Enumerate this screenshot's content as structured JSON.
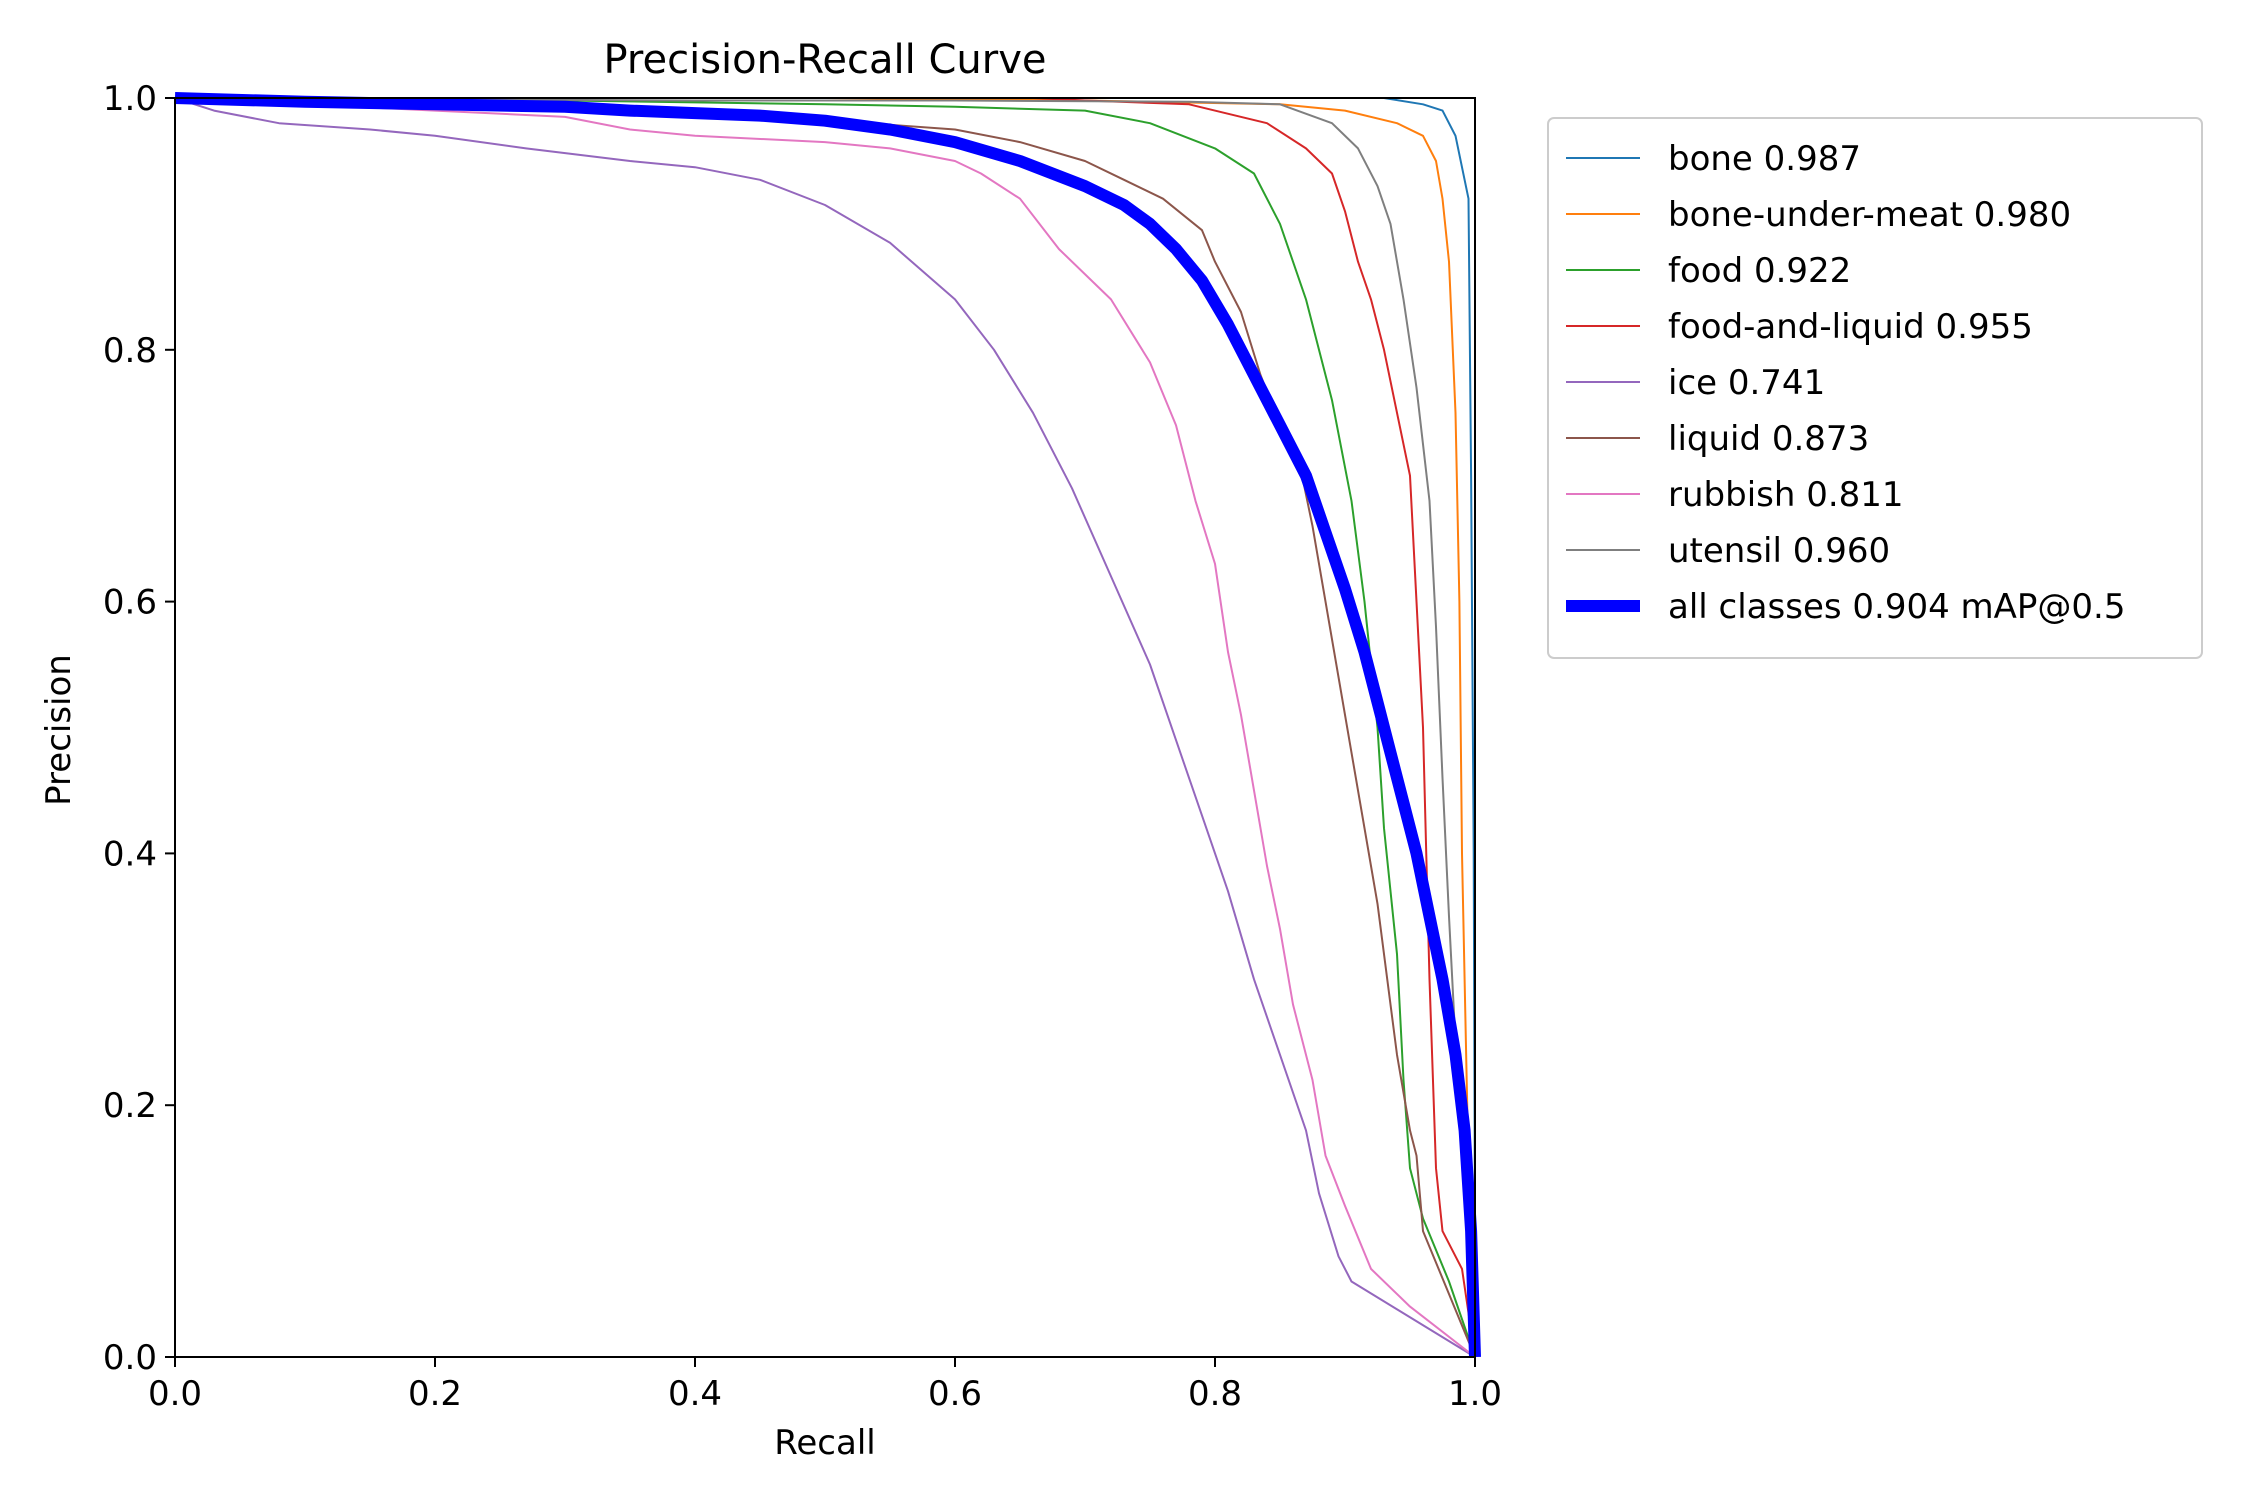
{
  "chart_data": {
    "type": "line",
    "title": "Precision-Recall Curve",
    "xlabel": "Recall",
    "ylabel": "Precision",
    "xlim": [
      0.0,
      1.0
    ],
    "ylim": [
      0.0,
      1.0
    ],
    "xticks": [
      "0.0",
      "0.2",
      "0.4",
      "0.6",
      "0.8",
      "1.0"
    ],
    "yticks": [
      "0.0",
      "0.2",
      "0.4",
      "0.6",
      "0.8",
      "1.0"
    ],
    "grid": false,
    "legend_position": "outside-right-top",
    "series": [
      {
        "name": "bone 0.987",
        "color": "#1f77b4",
        "width": 1,
        "points": [
          [
            0.0,
            1.0
          ],
          [
            0.3,
            1.0
          ],
          [
            0.6,
            1.0
          ],
          [
            0.88,
            1.0
          ],
          [
            0.93,
            1.0
          ],
          [
            0.96,
            0.995
          ],
          [
            0.975,
            0.99
          ],
          [
            0.985,
            0.97
          ],
          [
            0.995,
            0.92
          ],
          [
            0.997,
            0.7
          ],
          [
            0.999,
            0.4
          ],
          [
            1.0,
            0.1
          ],
          [
            1.0,
            0.0
          ]
        ]
      },
      {
        "name": "bone-under-meat 0.980",
        "color": "#ff7f0e",
        "width": 1,
        "points": [
          [
            0.0,
            1.0
          ],
          [
            0.5,
            1.0
          ],
          [
            0.7,
            0.998
          ],
          [
            0.85,
            0.995
          ],
          [
            0.9,
            0.99
          ],
          [
            0.94,
            0.98
          ],
          [
            0.96,
            0.97
          ],
          [
            0.97,
            0.95
          ],
          [
            0.975,
            0.92
          ],
          [
            0.98,
            0.87
          ],
          [
            0.985,
            0.75
          ],
          [
            0.988,
            0.6
          ],
          [
            0.99,
            0.4
          ],
          [
            0.993,
            0.25
          ],
          [
            0.995,
            0.15
          ],
          [
            1.0,
            0.0
          ]
        ]
      },
      {
        "name": "food 0.922",
        "color": "#2ca02c",
        "width": 1,
        "points": [
          [
            0.0,
            1.0
          ],
          [
            0.3,
            0.998
          ],
          [
            0.5,
            0.995
          ],
          [
            0.6,
            0.993
          ],
          [
            0.7,
            0.99
          ],
          [
            0.75,
            0.98
          ],
          [
            0.8,
            0.96
          ],
          [
            0.83,
            0.94
          ],
          [
            0.85,
            0.9
          ],
          [
            0.87,
            0.84
          ],
          [
            0.89,
            0.76
          ],
          [
            0.905,
            0.68
          ],
          [
            0.915,
            0.6
          ],
          [
            0.925,
            0.5
          ],
          [
            0.93,
            0.42
          ],
          [
            0.94,
            0.32
          ],
          [
            0.945,
            0.22
          ],
          [
            0.95,
            0.15
          ],
          [
            0.96,
            0.11
          ],
          [
            0.98,
            0.06
          ],
          [
            1.0,
            0.0
          ]
        ]
      },
      {
        "name": "food-and-liquid 0.955",
        "color": "#d62728",
        "width": 1,
        "points": [
          [
            0.0,
            1.0
          ],
          [
            0.66,
            1.0
          ],
          [
            0.7,
            0.998
          ],
          [
            0.78,
            0.995
          ],
          [
            0.84,
            0.98
          ],
          [
            0.87,
            0.96
          ],
          [
            0.89,
            0.94
          ],
          [
            0.9,
            0.91
          ],
          [
            0.91,
            0.87
          ],
          [
            0.92,
            0.84
          ],
          [
            0.93,
            0.8
          ],
          [
            0.94,
            0.75
          ],
          [
            0.95,
            0.7
          ],
          [
            0.955,
            0.6
          ],
          [
            0.96,
            0.5
          ],
          [
            0.965,
            0.3
          ],
          [
            0.97,
            0.15
          ],
          [
            0.975,
            0.1
          ],
          [
            0.98,
            0.09
          ],
          [
            0.99,
            0.07
          ],
          [
            1.0,
            0.0
          ]
        ]
      },
      {
        "name": "ice 0.741",
        "color": "#9467bd",
        "width": 1,
        "points": [
          [
            0.0,
            1.0
          ],
          [
            0.03,
            0.99
          ],
          [
            0.08,
            0.98
          ],
          [
            0.15,
            0.975
          ],
          [
            0.2,
            0.97
          ],
          [
            0.27,
            0.96
          ],
          [
            0.35,
            0.95
          ],
          [
            0.4,
            0.945
          ],
          [
            0.45,
            0.935
          ],
          [
            0.5,
            0.915
          ],
          [
            0.55,
            0.885
          ],
          [
            0.6,
            0.84
          ],
          [
            0.63,
            0.8
          ],
          [
            0.66,
            0.75
          ],
          [
            0.69,
            0.69
          ],
          [
            0.72,
            0.62
          ],
          [
            0.75,
            0.55
          ],
          [
            0.77,
            0.49
          ],
          [
            0.79,
            0.43
          ],
          [
            0.81,
            0.37
          ],
          [
            0.83,
            0.3
          ],
          [
            0.85,
            0.24
          ],
          [
            0.87,
            0.18
          ],
          [
            0.88,
            0.13
          ],
          [
            0.895,
            0.08
          ],
          [
            0.905,
            0.06
          ],
          [
            1.0,
            0.0
          ]
        ]
      },
      {
        "name": "liquid 0.873",
        "color": "#8c564b",
        "width": 1,
        "points": [
          [
            0.0,
            1.0
          ],
          [
            0.4,
            0.99
          ],
          [
            0.6,
            0.975
          ],
          [
            0.65,
            0.965
          ],
          [
            0.7,
            0.95
          ],
          [
            0.73,
            0.935
          ],
          [
            0.76,
            0.92
          ],
          [
            0.79,
            0.895
          ],
          [
            0.8,
            0.87
          ],
          [
            0.82,
            0.83
          ],
          [
            0.835,
            0.78
          ],
          [
            0.85,
            0.74
          ],
          [
            0.865,
            0.71
          ],
          [
            0.875,
            0.66
          ],
          [
            0.885,
            0.6
          ],
          [
            0.895,
            0.54
          ],
          [
            0.905,
            0.48
          ],
          [
            0.915,
            0.42
          ],
          [
            0.925,
            0.36
          ],
          [
            0.935,
            0.28
          ],
          [
            0.94,
            0.24
          ],
          [
            0.95,
            0.18
          ],
          [
            0.955,
            0.16
          ],
          [
            0.96,
            0.1
          ],
          [
            1.0,
            0.0
          ]
        ]
      },
      {
        "name": "rubbish 0.811",
        "color": "#e377c2",
        "width": 1,
        "points": [
          [
            0.0,
            1.0
          ],
          [
            0.2,
            0.99
          ],
          [
            0.3,
            0.985
          ],
          [
            0.35,
            0.975
          ],
          [
            0.4,
            0.97
          ],
          [
            0.5,
            0.965
          ],
          [
            0.55,
            0.96
          ],
          [
            0.6,
            0.95
          ],
          [
            0.62,
            0.94
          ],
          [
            0.65,
            0.92
          ],
          [
            0.68,
            0.88
          ],
          [
            0.72,
            0.84
          ],
          [
            0.75,
            0.79
          ],
          [
            0.77,
            0.74
          ],
          [
            0.785,
            0.68
          ],
          [
            0.8,
            0.63
          ],
          [
            0.81,
            0.56
          ],
          [
            0.82,
            0.51
          ],
          [
            0.83,
            0.45
          ],
          [
            0.84,
            0.39
          ],
          [
            0.85,
            0.34
          ],
          [
            0.86,
            0.28
          ],
          [
            0.875,
            0.22
          ],
          [
            0.885,
            0.16
          ],
          [
            0.9,
            0.12
          ],
          [
            0.92,
            0.07
          ],
          [
            0.95,
            0.04
          ],
          [
            1.0,
            0.0
          ]
        ]
      },
      {
        "name": "utensil 0.960",
        "color": "#7f7f7f",
        "width": 1,
        "points": [
          [
            0.0,
            1.0
          ],
          [
            0.4,
            0.998
          ],
          [
            0.6,
            0.998
          ],
          [
            0.78,
            0.997
          ],
          [
            0.85,
            0.995
          ],
          [
            0.89,
            0.98
          ],
          [
            0.91,
            0.96
          ],
          [
            0.925,
            0.93
          ],
          [
            0.935,
            0.9
          ],
          [
            0.945,
            0.84
          ],
          [
            0.955,
            0.77
          ],
          [
            0.965,
            0.68
          ],
          [
            0.97,
            0.58
          ],
          [
            0.975,
            0.46
          ],
          [
            0.98,
            0.35
          ],
          [
            0.985,
            0.25
          ],
          [
            0.99,
            0.17
          ],
          [
            0.995,
            0.12
          ],
          [
            1.0,
            0.0
          ]
        ]
      },
      {
        "name": "all classes 0.904 mAP@0.5",
        "color": "#0000ff",
        "width": 6,
        "points": [
          [
            0.0,
            1.0
          ],
          [
            0.1,
            0.997
          ],
          [
            0.2,
            0.995
          ],
          [
            0.3,
            0.993
          ],
          [
            0.35,
            0.99
          ],
          [
            0.4,
            0.988
          ],
          [
            0.45,
            0.986
          ],
          [
            0.5,
            0.982
          ],
          [
            0.55,
            0.975
          ],
          [
            0.6,
            0.965
          ],
          [
            0.65,
            0.95
          ],
          [
            0.7,
            0.93
          ],
          [
            0.73,
            0.915
          ],
          [
            0.75,
            0.9
          ],
          [
            0.77,
            0.88
          ],
          [
            0.79,
            0.855
          ],
          [
            0.81,
            0.82
          ],
          [
            0.83,
            0.78
          ],
          [
            0.85,
            0.74
          ],
          [
            0.87,
            0.7
          ],
          [
            0.885,
            0.655
          ],
          [
            0.9,
            0.61
          ],
          [
            0.915,
            0.56
          ],
          [
            0.925,
            0.52
          ],
          [
            0.935,
            0.48
          ],
          [
            0.945,
            0.44
          ],
          [
            0.955,
            0.4
          ],
          [
            0.965,
            0.35
          ],
          [
            0.975,
            0.3
          ],
          [
            0.985,
            0.24
          ],
          [
            0.992,
            0.18
          ],
          [
            0.997,
            0.1
          ],
          [
            1.0,
            0.0
          ]
        ]
      }
    ]
  }
}
